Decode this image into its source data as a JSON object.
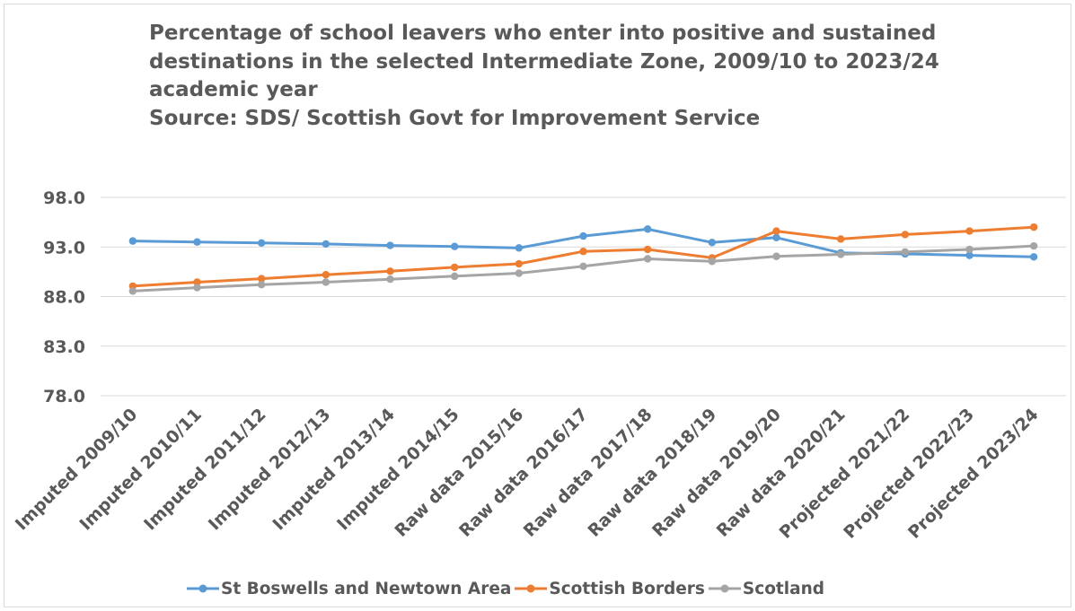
{
  "chart_data": {
    "type": "line",
    "title_lines": [
      "Percentage of school leavers who enter into positive and sustained",
      "destinations in the selected Intermediate Zone, 2009/10 to 2023/24",
      "academic year",
      "Source: SDS/ Scottish Govt for Improvement Service"
    ],
    "categories": [
      "Imputed 2009/10",
      "Imputed 2010/11",
      "Imputed 2011/12",
      "Imputed 2012/13",
      "Imputed 2013/14",
      "Imputed 2014/15",
      "Raw data 2015/16",
      "Raw data 2016/17",
      "Raw data 2017/18",
      "Raw data 2018/19",
      "Raw data 2019/20",
      "Raw data 2020/21",
      "Projected 2021/22",
      "Projected 2022/23",
      "Projected 2023/24"
    ],
    "yticks": [
      "98.0",
      "93.0",
      "88.0",
      "83.0",
      "78.0"
    ],
    "ylim": [
      78,
      98
    ],
    "xlabel": "",
    "ylabel": "",
    "grid": true,
    "legend_position": "bottom",
    "series": [
      {
        "name": "St Boswells and Newtown Area",
        "color": "#5b9bd5",
        "values": [
          93.6,
          93.5,
          93.4,
          93.3,
          93.15,
          93.05,
          92.9,
          94.1,
          94.8,
          93.45,
          93.95,
          92.4,
          92.3,
          92.15,
          92.0
        ]
      },
      {
        "name": "Scottish Borders",
        "color": "#ed7d31",
        "values": [
          89.05,
          89.45,
          89.8,
          90.2,
          90.55,
          90.95,
          91.3,
          92.55,
          92.75,
          91.9,
          94.6,
          93.8,
          94.25,
          94.6,
          95.0
        ]
      },
      {
        "name": "Scotland",
        "color": "#a5a5a5",
        "values": [
          88.55,
          88.9,
          89.2,
          89.45,
          89.75,
          90.05,
          90.35,
          91.05,
          91.8,
          91.55,
          92.05,
          92.25,
          92.5,
          92.75,
          93.1
        ]
      }
    ]
  }
}
